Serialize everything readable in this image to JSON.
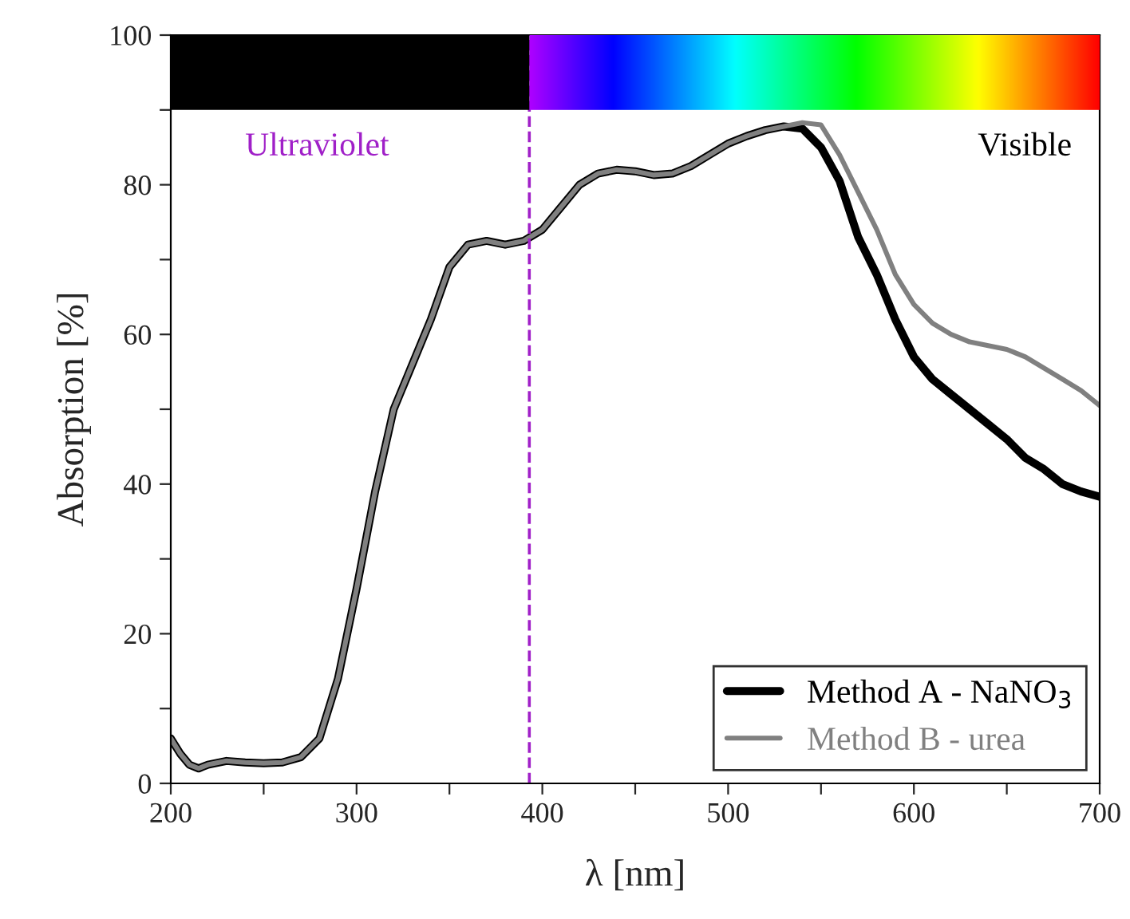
{
  "chart_data": {
    "type": "line",
    "xlabel": "λ [nm]",
    "ylabel": "Absorption [%]",
    "x": [
      200,
      205,
      210,
      215,
      220,
      230,
      240,
      250,
      260,
      270,
      280,
      290,
      300,
      310,
      320,
      330,
      340,
      350,
      360,
      370,
      380,
      390,
      400,
      410,
      420,
      430,
      440,
      450,
      460,
      470,
      480,
      490,
      500,
      510,
      520,
      530,
      540,
      550,
      560,
      570,
      580,
      590,
      600,
      610,
      620,
      630,
      640,
      650,
      660,
      670,
      680,
      690,
      700
    ],
    "series": [
      {
        "name": "Method A - NaNO$_{3}$",
        "color": "#000000",
        "values": [
          6,
          4,
          2.5,
          2,
          2.5,
          3,
          2.8,
          2.7,
          2.8,
          3.5,
          6,
          14,
          26,
          39,
          50,
          56,
          62,
          69,
          72,
          72.5,
          72,
          72.5,
          74,
          77,
          80,
          81.5,
          82,
          81.8,
          81.3,
          81.5,
          82.5,
          84,
          85.5,
          86.5,
          87.3,
          87.8,
          87.5,
          85,
          80.5,
          73,
          68,
          62,
          57,
          54,
          52,
          50,
          48,
          46,
          43.5,
          42,
          40,
          39,
          38.3
        ]
      },
      {
        "name": "Method B - urea",
        "color": "#808080",
        "values": [
          6,
          4,
          2.5,
          2,
          2.5,
          3,
          2.8,
          2.7,
          2.8,
          3.5,
          6,
          14,
          26,
          39,
          50,
          56,
          62,
          69,
          72,
          72.5,
          72,
          72.5,
          74,
          77,
          80,
          81.5,
          82,
          81.8,
          81.3,
          81.5,
          82.5,
          84,
          85.5,
          86.5,
          87.3,
          87.8,
          88.3,
          88,
          84,
          79,
          74,
          68,
          64,
          61.5,
          60,
          59,
          58.5,
          58,
          57,
          55.5,
          54,
          52.5,
          50.5
        ]
      }
    ],
    "xlim": [
      200,
      700
    ],
    "ylim": [
      0,
      100
    ],
    "xticks": [
      200,
      {
        "value": 250,
        "label": null
      },
      300,
      {
        "value": 350,
        "label": null
      },
      400,
      {
        "value": 450,
        "label": null
      },
      500,
      {
        "value": 550,
        "label": null
      },
      600,
      {
        "value": 650,
        "label": null
      },
      700
    ],
    "yticks": [
      0,
      {
        "value": 10,
        "label": null
      },
      20,
      {
        "value": 30,
        "label": null
      },
      40,
      {
        "value": 50,
        "label": null
      },
      60,
      {
        "value": 70,
        "label": null
      },
      80,
      {
        "value": 90,
        "label": null
      },
      100
    ],
    "ref_lines": [
      {
        "axis": "x",
        "value": 393,
        "label": null,
        "color": "#a020c8",
        "line_style": "dashed"
      }
    ],
    "annotations": [
      "Ultraviolet",
      "Visible"
    ],
    "legend": "bottom right",
    "grid": false,
    "marker": "none",
    "line_style": "solid"
  }
}
